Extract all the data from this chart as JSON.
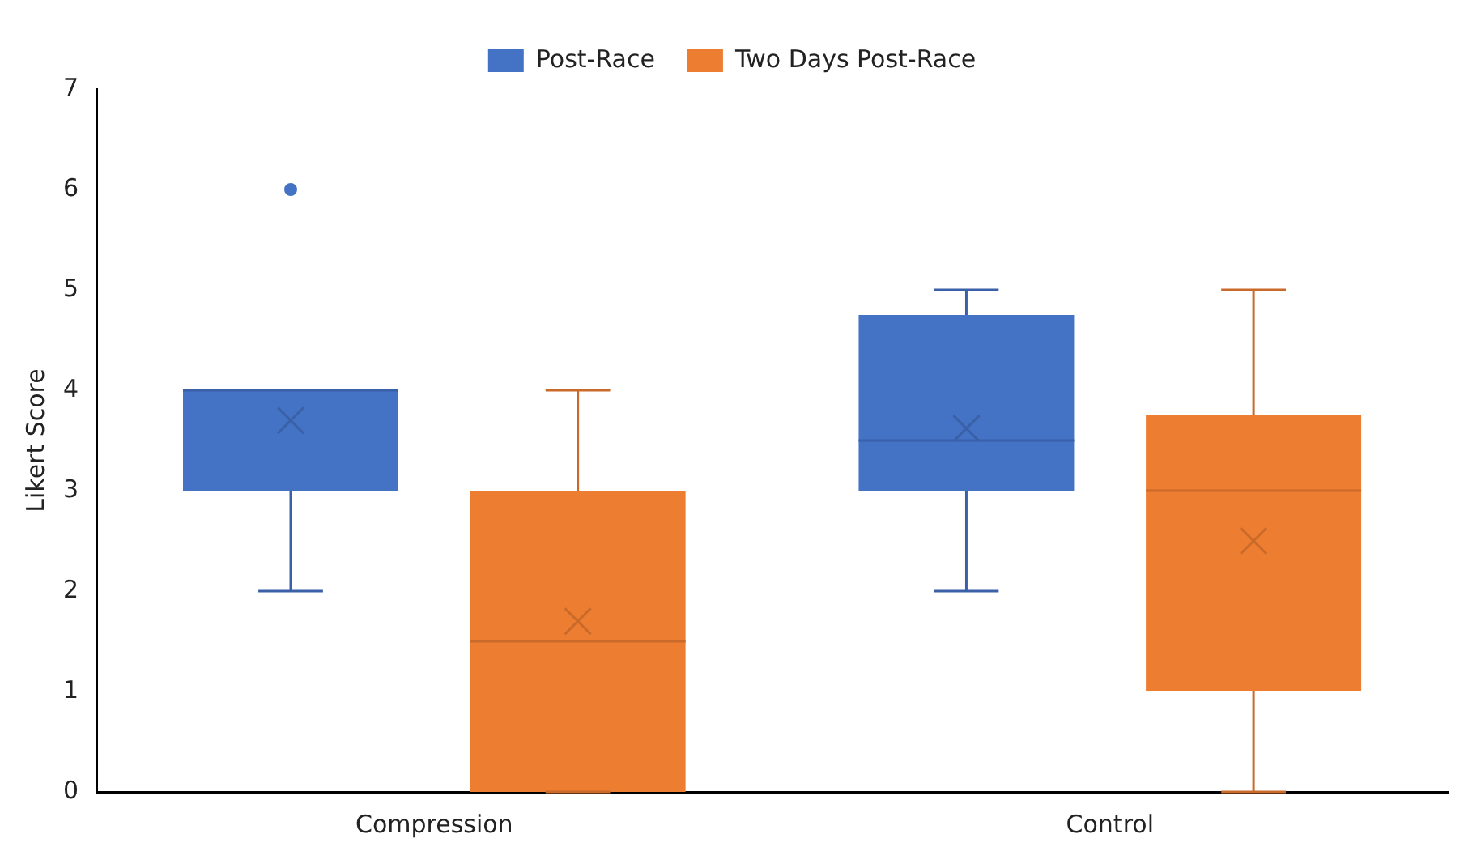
{
  "chart_data": {
    "type": "box",
    "ylabel": "Likert Score",
    "categories": [
      "Compression",
      "Control"
    ],
    "series": [
      {
        "name": "Post-Race",
        "color": "#4472c4",
        "boxes": [
          {
            "low": 2,
            "q1": 3,
            "median": 4,
            "q3": 4,
            "high": 4,
            "mean": 3.7,
            "outliers": [
              6
            ]
          },
          {
            "low": 2,
            "q1": 3,
            "median": 3.5,
            "q3": 4.75,
            "high": 5,
            "mean": 3.62
          }
        ]
      },
      {
        "name": "Two Days Post-Race",
        "color": "#ed7d31",
        "boxes": [
          {
            "low": 0,
            "q1": 0,
            "median": 1.5,
            "q3": 3,
            "high": 4,
            "mean": 1.7
          },
          {
            "low": 0,
            "q1": 1,
            "median": 3,
            "q3": 3.75,
            "high": 5,
            "mean": 2.5
          }
        ]
      }
    ],
    "ylim": [
      0,
      7
    ],
    "yticks": [
      0,
      1,
      2,
      3,
      4,
      5,
      6,
      7
    ],
    "grid": false,
    "legend": "top"
  }
}
